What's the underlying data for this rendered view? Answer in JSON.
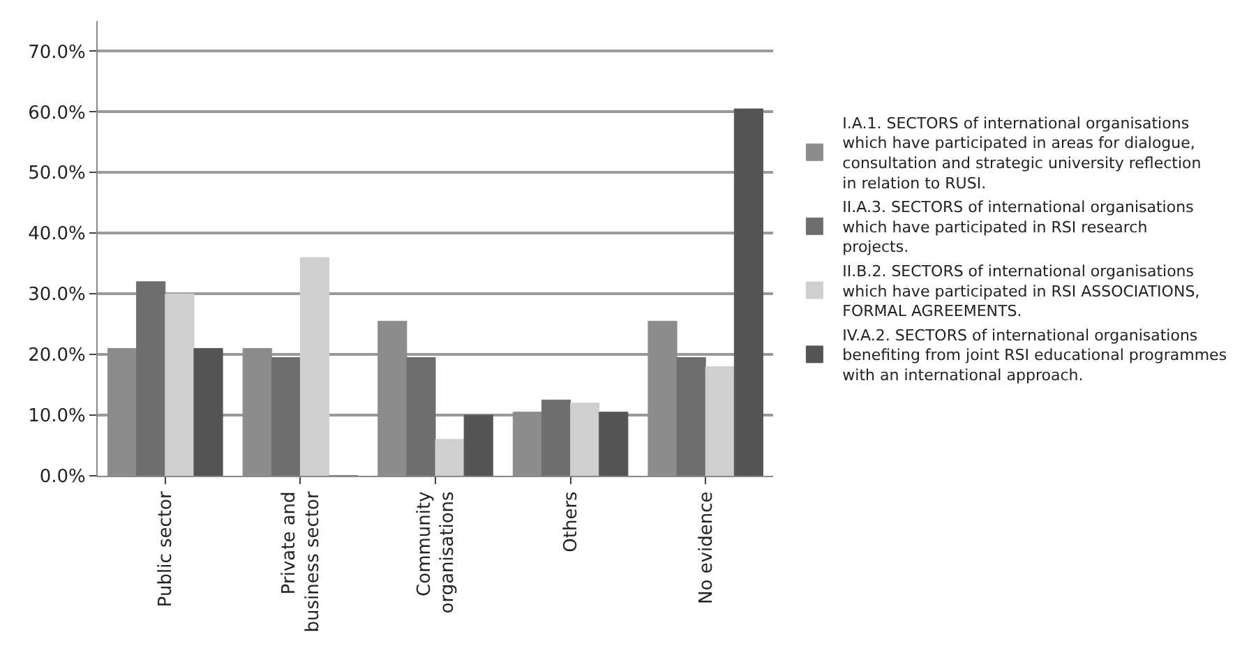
{
  "chart_data": {
    "type": "bar",
    "categories": [
      "Public sector",
      "Private and business sector",
      "Community organisations",
      "Others",
      "No evidence"
    ],
    "series": [
      {
        "name": "I.A.1. SECTORS of international organisations which have participated in areas for dialogue, consultation and strategic university reflection in relation to RUSI.",
        "color": "#8c8c8c",
        "values": [
          21,
          21,
          25.5,
          10.5,
          25.5
        ]
      },
      {
        "name": "II.A.3. SECTORS of international organisations which have participated in RSI research projects.",
        "color": "#6e6e6e",
        "values": [
          32,
          19.5,
          19.5,
          12.5,
          19.5
        ]
      },
      {
        "name": "II.B.2. SECTORS of international organisations which have participated in RSI ASSOCIATIONS, FORMAL AGREEMENTS.",
        "color": "#cfcfcf",
        "values": [
          30,
          36,
          6,
          12,
          18
        ]
      },
      {
        "name": "IV.A.2. SECTORS of international organisations benefiting from joint RSI educational programmes with an international approach.",
        "color": "#555555",
        "values": [
          21,
          0,
          10,
          10.5,
          60.5
        ]
      }
    ],
    "ylim": [
      0,
      75
    ],
    "yticks": [
      {
        "value": 0,
        "label": "0.0%"
      },
      {
        "value": 10,
        "label": "10.0%"
      },
      {
        "value": 20,
        "label": "20.0%"
      },
      {
        "value": 30,
        "label": "30.0%"
      },
      {
        "value": 40,
        "label": "40.0%"
      },
      {
        "value": 50,
        "label": "50.0%"
      },
      {
        "value": 60,
        "label": "60.0%"
      },
      {
        "value": 70,
        "label": "70.0%"
      }
    ],
    "grid": "y",
    "legend": "right"
  }
}
